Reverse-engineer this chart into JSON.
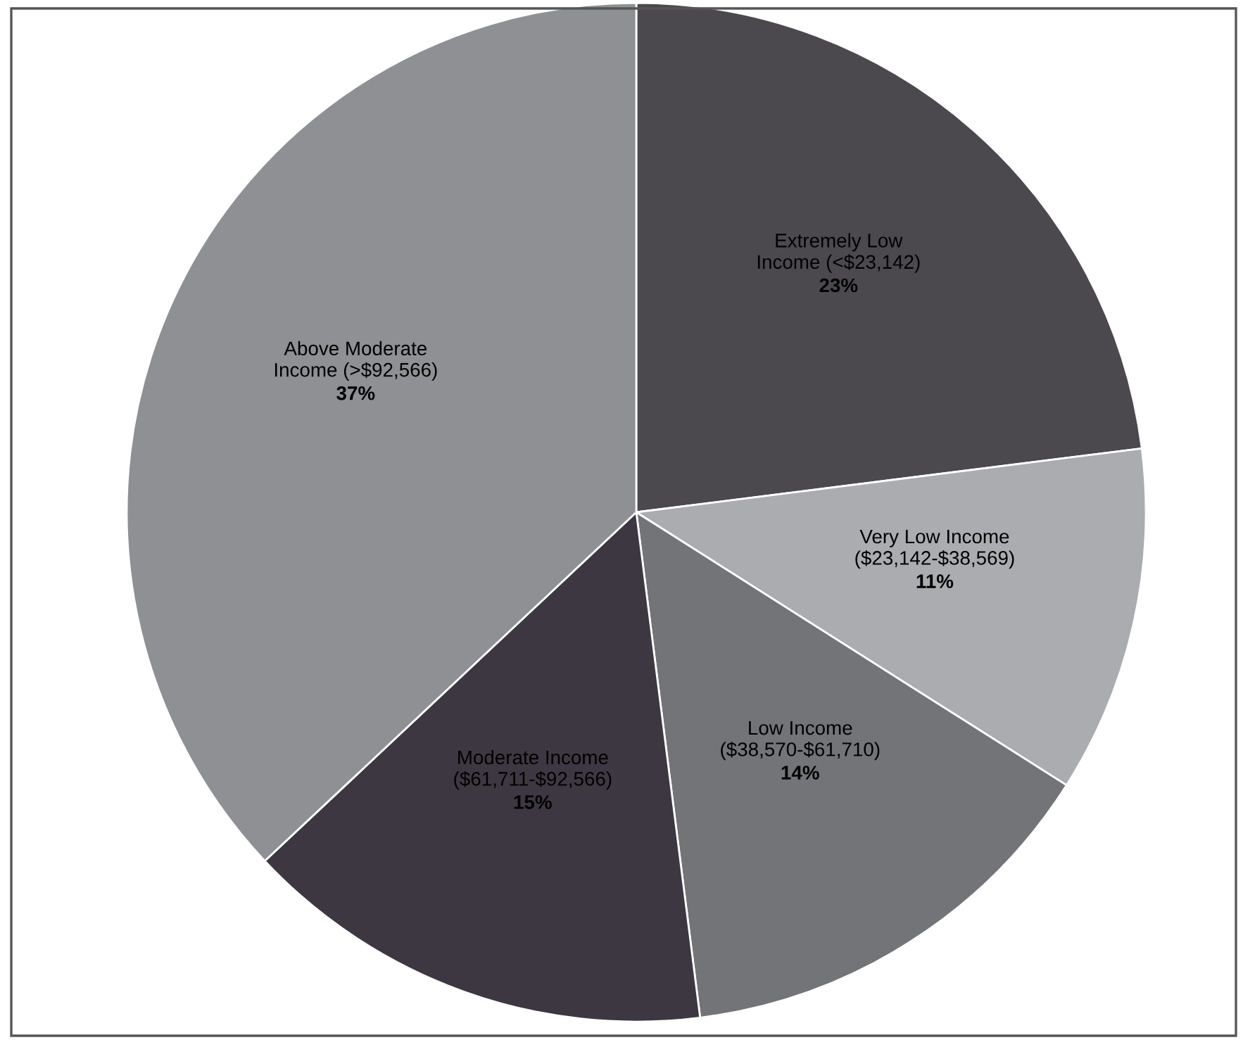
{
  "chart_data": {
    "type": "pie",
    "categories": [
      "Extremely Low\nIncome (<$23,142)",
      "Very Low Income\n($23,142-$38,569)",
      "Low Income\n($38,570-$61,710)",
      "Moderate Income\n($61,711-$92,566)",
      "Above Moderate\nIncome (>$92,566)"
    ],
    "values": [
      23,
      11,
      14,
      15,
      37
    ],
    "value_labels": [
      "23%",
      "11%",
      "14%",
      "15%",
      "37%"
    ],
    "colors": [
      "#4b494e",
      "#aaacaf",
      "#737478",
      "#3d3741",
      "#8f9094"
    ]
  }
}
